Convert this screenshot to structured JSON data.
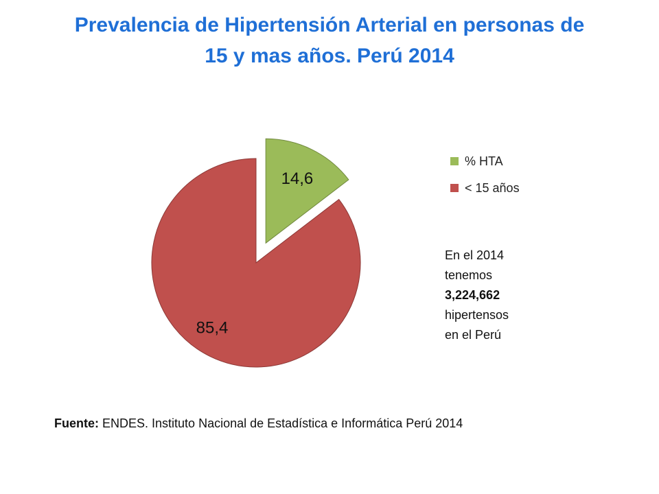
{
  "title_line1": "Prevalencia de Hipertensión Arterial en personas de",
  "title_line2": "15 y mas años. Perú 2014",
  "chart_data": {
    "type": "pie",
    "categories": [
      "% HTA",
      "< 15 años"
    ],
    "values": [
      14.6,
      85.4
    ],
    "data_labels": [
      "14,6",
      "85,4"
    ],
    "colors": [
      "#9bbb59",
      "#c0504d"
    ],
    "exploded": "% HTA",
    "legend_position": "right"
  },
  "note": {
    "line1": "En el 2014",
    "line2": "tenemos",
    "line3": "3,224,662",
    "line4": "hipertensos",
    "line5": "en el Perú"
  },
  "source": {
    "label": "Fuente:",
    "text": "ENDES. Instituto Nacional de Estadística e Informática Perú 2014"
  }
}
